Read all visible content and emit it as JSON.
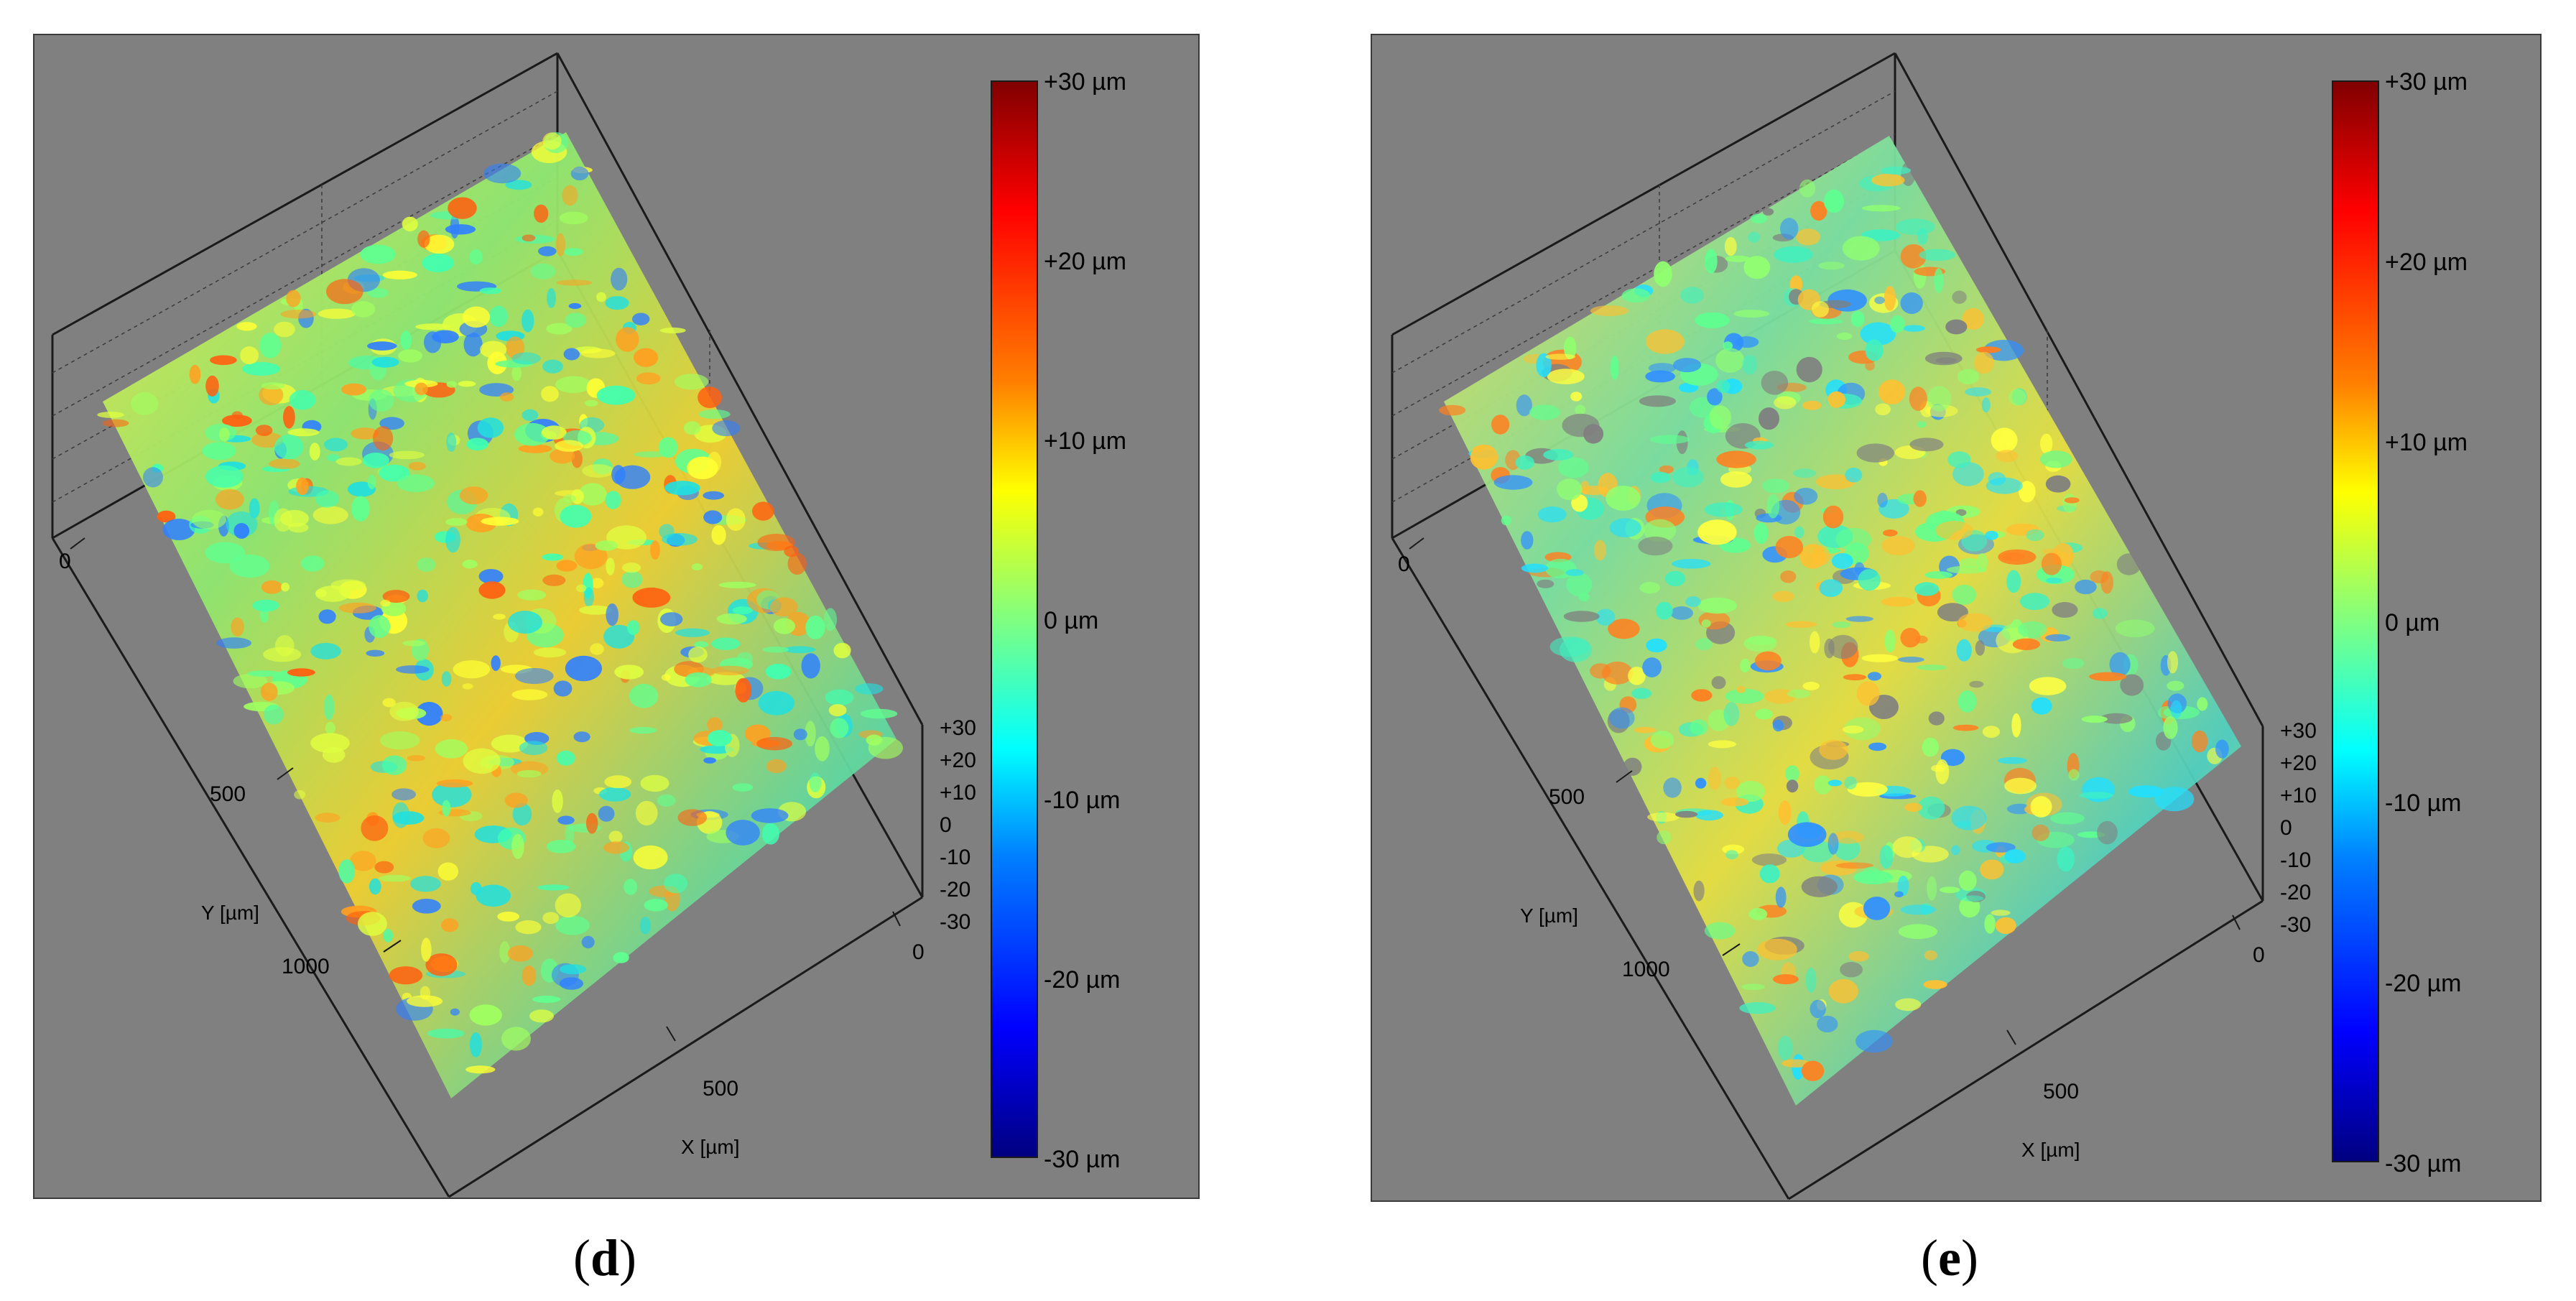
{
  "panels": [
    {
      "id": "d",
      "caption_open": "(",
      "caption_letter": "d",
      "caption_close": ")",
      "colorbar": {
        "labels": [
          "+30 µm",
          "+20 µm",
          "+10 µm",
          "0 µm",
          "-10 µm",
          "-20 µm",
          "-30 µm"
        ],
        "max": 30,
        "min": -30,
        "colors": [
          "#800000",
          "#ff0000",
          "#ff8000",
          "#ffff00",
          "#80ff80",
          "#00ffff",
          "#0080ff",
          "#0000ff",
          "#000080"
        ]
      },
      "y_axis": {
        "title": "Y [µm]",
        "ticks": [
          "0",
          "500",
          "1000"
        ]
      },
      "x_axis": {
        "title": "X [µm]",
        "ticks": [
          "0",
          "500"
        ]
      },
      "z_axis": {
        "ticks": [
          "+30",
          "+20",
          "+10",
          "0",
          "-10",
          "-20",
          "-30"
        ]
      }
    },
    {
      "id": "e",
      "caption_open": "(",
      "caption_letter": "e",
      "caption_close": ")",
      "colorbar": {
        "labels": [
          "+30 µm",
          "+20 µm",
          "+10 µm",
          "0 µm",
          "-10 µm",
          "-20 µm",
          "-30 µm"
        ],
        "max": 30,
        "min": -30,
        "colors": [
          "#800000",
          "#ff0000",
          "#ff8000",
          "#ffff00",
          "#80ff80",
          "#00ffff",
          "#0080ff",
          "#0000ff",
          "#000080"
        ]
      },
      "y_axis": {
        "title": "Y [µm]",
        "ticks": [
          "0",
          "500",
          "1000"
        ]
      },
      "x_axis": {
        "title": "X [µm]",
        "ticks": [
          "0",
          "500"
        ]
      },
      "z_axis": {
        "ticks": [
          "+30",
          "+20",
          "+10",
          "0",
          "-10",
          "-20",
          "-30"
        ]
      }
    }
  ]
}
